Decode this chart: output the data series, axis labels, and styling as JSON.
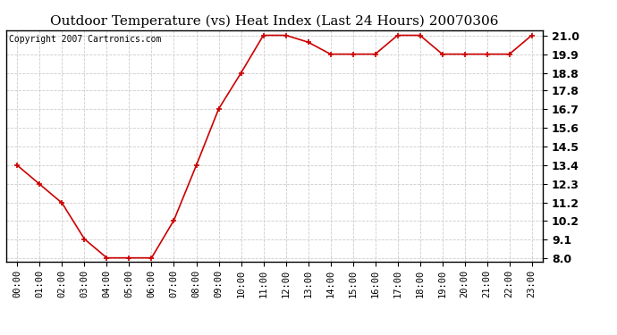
{
  "title": "Outdoor Temperature (vs) Heat Index (Last 24 Hours) 20070306",
  "copyright": "Copyright 2007 Cartronics.com",
  "x_labels": [
    "00:00",
    "01:00",
    "02:00",
    "03:00",
    "04:00",
    "05:00",
    "06:00",
    "07:00",
    "08:00",
    "09:00",
    "10:00",
    "11:00",
    "12:00",
    "13:00",
    "14:00",
    "15:00",
    "16:00",
    "17:00",
    "18:00",
    "19:00",
    "20:00",
    "21:00",
    "22:00",
    "23:00"
  ],
  "y_values": [
    13.4,
    12.3,
    11.2,
    9.1,
    8.0,
    8.0,
    8.0,
    10.2,
    13.4,
    16.7,
    18.8,
    21.0,
    21.0,
    20.6,
    19.9,
    19.9,
    19.9,
    21.0,
    21.0,
    19.9,
    19.9,
    19.9,
    19.9,
    21.0
  ],
  "y_ticks": [
    8.0,
    9.1,
    10.2,
    11.2,
    12.3,
    13.4,
    14.5,
    15.6,
    16.7,
    17.8,
    18.8,
    19.9,
    21.0
  ],
  "ylim": [
    7.8,
    21.3
  ],
  "line_color": "#cc0000",
  "marker": "+",
  "marker_size": 5,
  "marker_linewidth": 1.2,
  "grid_color": "#cccccc",
  "bg_color": "#ffffff",
  "title_fontsize": 11,
  "copyright_fontsize": 7,
  "tick_fontsize": 7.5,
  "ytick_fontsize": 9
}
